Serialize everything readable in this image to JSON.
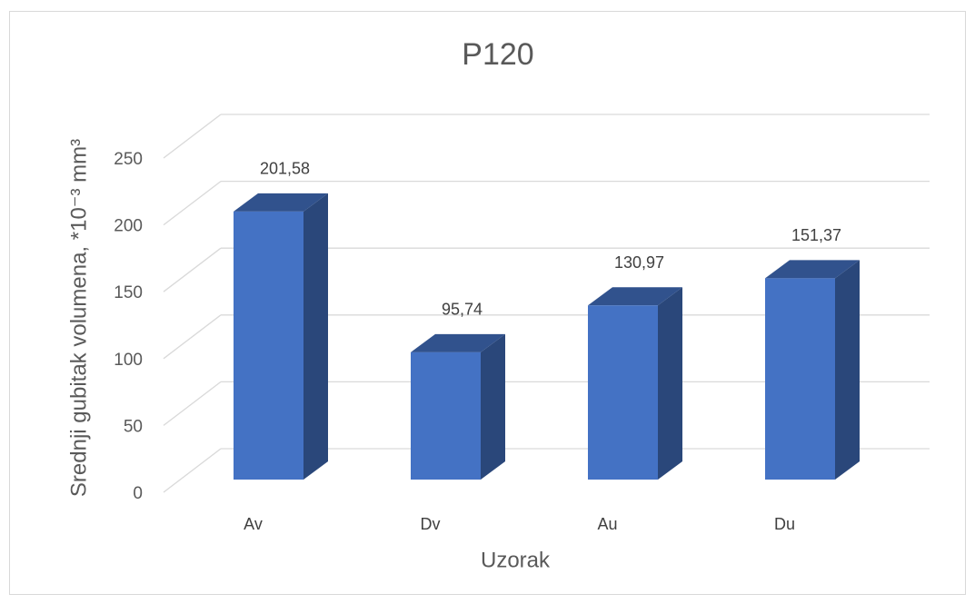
{
  "chart_data": {
    "type": "bar3d",
    "title": "P120",
    "categories": [
      "Av",
      "Dv",
      "Au",
      "Du"
    ],
    "values": [
      201.58,
      95.74,
      130.97,
      151.37
    ],
    "value_labels": [
      "201,58",
      "95,74",
      "130,97",
      "151,37"
    ],
    "color": "#4472c4",
    "ylim": [
      0,
      250
    ],
    "yticks": [
      0,
      50,
      100,
      150,
      200,
      250
    ],
    "xlabel": "Uzorak",
    "ylabel": "Srednji gubitak volumena, *10⁻³ mm³",
    "grid": true
  }
}
